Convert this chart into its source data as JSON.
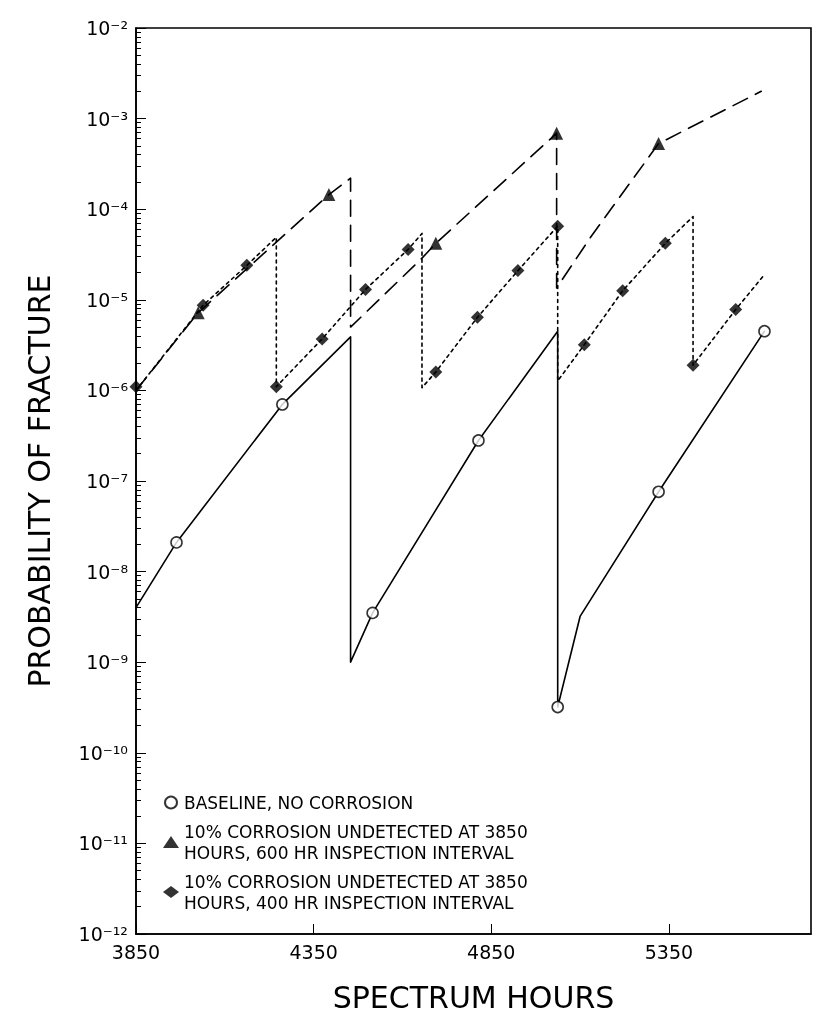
{
  "chart_data": {
    "type": "line",
    "xlabel": "SPECTRUM HOURS",
    "ylabel": "PROBABILITY OF FRACTURE",
    "log": "y",
    "grid": false,
    "legend": "bottom left",
    "xlim": [
      3850,
      5750
    ],
    "xticks": [
      3850,
      4350,
      4850,
      5350
    ],
    "ylim": [
      1e-12,
      0.01
    ],
    "yticks": [
      {
        "value": 1e-12,
        "label": "10⁻¹²"
      },
      {
        "value": 1e-11,
        "label": "10⁻¹¹"
      },
      {
        "value": 1e-10,
        "label": "10⁻¹⁰"
      },
      {
        "value": 1e-09,
        "label": "10⁻⁹"
      },
      {
        "value": 1e-08,
        "label": "10⁻⁸"
      },
      {
        "value": 1e-07,
        "label": "10⁻⁷"
      },
      {
        "value": 1e-06,
        "label": "10⁻⁶"
      },
      {
        "value": 1e-05,
        "label": "10⁻⁵"
      },
      {
        "value": 0.0001,
        "label": "10⁻⁴"
      },
      {
        "value": 0.001,
        "label": "10⁻³"
      },
      {
        "value": 0.01,
        "label": "10⁻²"
      }
    ],
    "series": [
      {
        "type": "line",
        "color": "#000000",
        "line_style": "solid",
        "marker": "none",
        "x": [
          3850,
          3964,
          4262,
          4454,
          4454,
          4516,
          4814,
          5037,
          5037,
          5100,
          5321,
          5619
        ],
        "values": [
          4e-09,
          2.1e-08,
          7e-07,
          3.9e-06,
          1e-09,
          3.5e-09,
          2.8e-07,
          4.5e-06,
          3.2e-10,
          3.2e-09,
          7.6e-08,
          4.5e-06
        ]
      },
      {
        "type": "line",
        "color": "#000000",
        "line_style": "dashed",
        "marker": "none",
        "x": [
          3850,
          4025,
          4393,
          4454,
          4454,
          4652,
          4694,
          5034,
          5034,
          5131,
          5321,
          5610
        ],
        "values": [
          1e-06,
          7.2e-06,
          0.000145,
          0.00022,
          5e-06,
          2.8e-05,
          4.2e-05,
          0.00069,
          1.35e-05,
          5e-05,
          0.00053,
          0.002
        ]
      },
      {
        "type": "line",
        "color": "#000000",
        "line_style": "dotted",
        "marker": "none",
        "x": [
          3850,
          4039,
          4162,
          4245,
          4245,
          4374,
          4496,
          4616,
          4655,
          4655,
          4694,
          4811,
          4925,
          5037,
          5037,
          5112,
          5220,
          5340,
          5418,
          5418,
          5538,
          5619
        ],
        "values": [
          1e-06,
          8.7e-06,
          2.4e-05,
          4.9e-05,
          1.1e-06,
          3.7e-06,
          1.3e-05,
          3.6e-05,
          5.4e-05,
          1.07e-06,
          1.6e-06,
          6.4e-06,
          2.1e-05,
          6.5e-05,
          1.27e-06,
          3.2e-06,
          1.26e-05,
          4.2e-05,
          8.3e-05,
          1.9e-06,
          7.8e-06,
          1.9e-05
        ]
      },
      {
        "type": "scatter",
        "name": "BASELINE, NO CORROSION",
        "color": "#000000",
        "marker": "circle",
        "x": [
          3964,
          4262,
          4516,
          4814,
          5037,
          5321,
          5619
        ],
        "values": [
          2.1e-08,
          7e-07,
          3.5e-09,
          2.8e-07,
          3.2e-10,
          7.6e-08,
          4.5e-06
        ]
      },
      {
        "type": "scatter",
        "name": "10% CORROSION UNDETECTED AT 3850 HOURS, 600 HR INSPECTION INTERVAL",
        "color": "#000000",
        "marker": "triangle",
        "x": [
          4025,
          4393,
          4694,
          5034,
          5321
        ],
        "values": [
          7.2e-06,
          0.000145,
          4.2e-05,
          0.00069,
          0.00053
        ]
      },
      {
        "type": "scatter",
        "name": "10% CORROSION UNDETECTED AT 3850 HOURS, 400 HR INSPECTION INTERVAL",
        "color": "#000000",
        "marker": "diamond",
        "x": [
          3850,
          4039,
          4162,
          4245,
          4374,
          4496,
          4616,
          4694,
          4811,
          4925,
          5037,
          5112,
          5220,
          5340,
          5418,
          5538
        ],
        "values": [
          1.1e-06,
          8.7e-06,
          2.4e-05,
          1.1e-06,
          3.7e-06,
          1.3e-05,
          3.6e-05,
          1.6e-06,
          6.4e-06,
          2.1e-05,
          6.5e-05,
          3.2e-06,
          1.26e-05,
          4.2e-05,
          1.9e-06,
          7.8e-06
        ]
      }
    ]
  }
}
